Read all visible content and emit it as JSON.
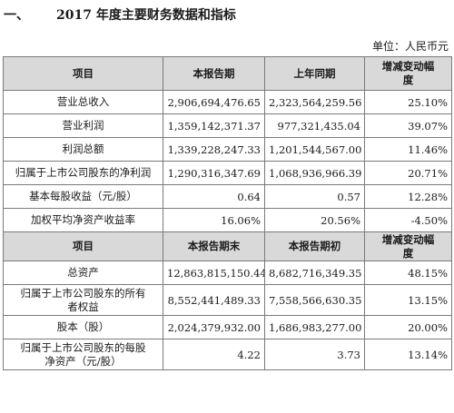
{
  "heading": {
    "number": "一、",
    "title": "2017 年度主要财务数据和指标"
  },
  "unit": "单位：人民币元",
  "section1": {
    "headers": [
      "项目",
      "本报告期",
      "上年同期",
      "增减变动幅度"
    ],
    "rows": [
      {
        "label": "营业总收入",
        "current": "2,906,694,476.65",
        "previous": "2,323,564,259.56",
        "change": "25.10%"
      },
      {
        "label": "营业利润",
        "current": "1,359,142,371.37",
        "previous": "977,321,435.04",
        "change": "39.07%"
      },
      {
        "label": "利润总额",
        "current": "1,339,228,247.33",
        "previous": "1,201,544,567.00",
        "change": "11.46%"
      },
      {
        "label": "归属于上市公司股东的净利润",
        "current": "1,290,316,347.69",
        "previous": "1,068,936,966.39",
        "change": "20.71%"
      },
      {
        "label": "基本每股收益（元/股）",
        "current": "0.64",
        "previous": "0.57",
        "change": "12.28%"
      },
      {
        "label": "加权平均净资产收益率",
        "current": "16.06%",
        "previous": "20.56%",
        "change": "-4.50%"
      }
    ]
  },
  "section2": {
    "headers": [
      "项目",
      "本报告期末",
      "本报告期初",
      "增减变动幅度"
    ],
    "rows": [
      {
        "label": "总资产",
        "current": "12,863,815,150.44",
        "previous": "8,682,716,349.35",
        "change": "48.15%"
      },
      {
        "label": "归属于上市公司股东的所有者权益",
        "current": "8,552,441,489.33",
        "previous": "7,558,566,630.35",
        "change": "13.15%"
      },
      {
        "label": "股本（股）",
        "current": "2,024,379,932.00",
        "previous": "1,686,983,277.00",
        "change": "20.00%"
      },
      {
        "label": "归属于上市公司股东的每股净资产（元/股）",
        "current": "4.22",
        "previous": "3.73",
        "change": "13.14%"
      }
    ]
  }
}
